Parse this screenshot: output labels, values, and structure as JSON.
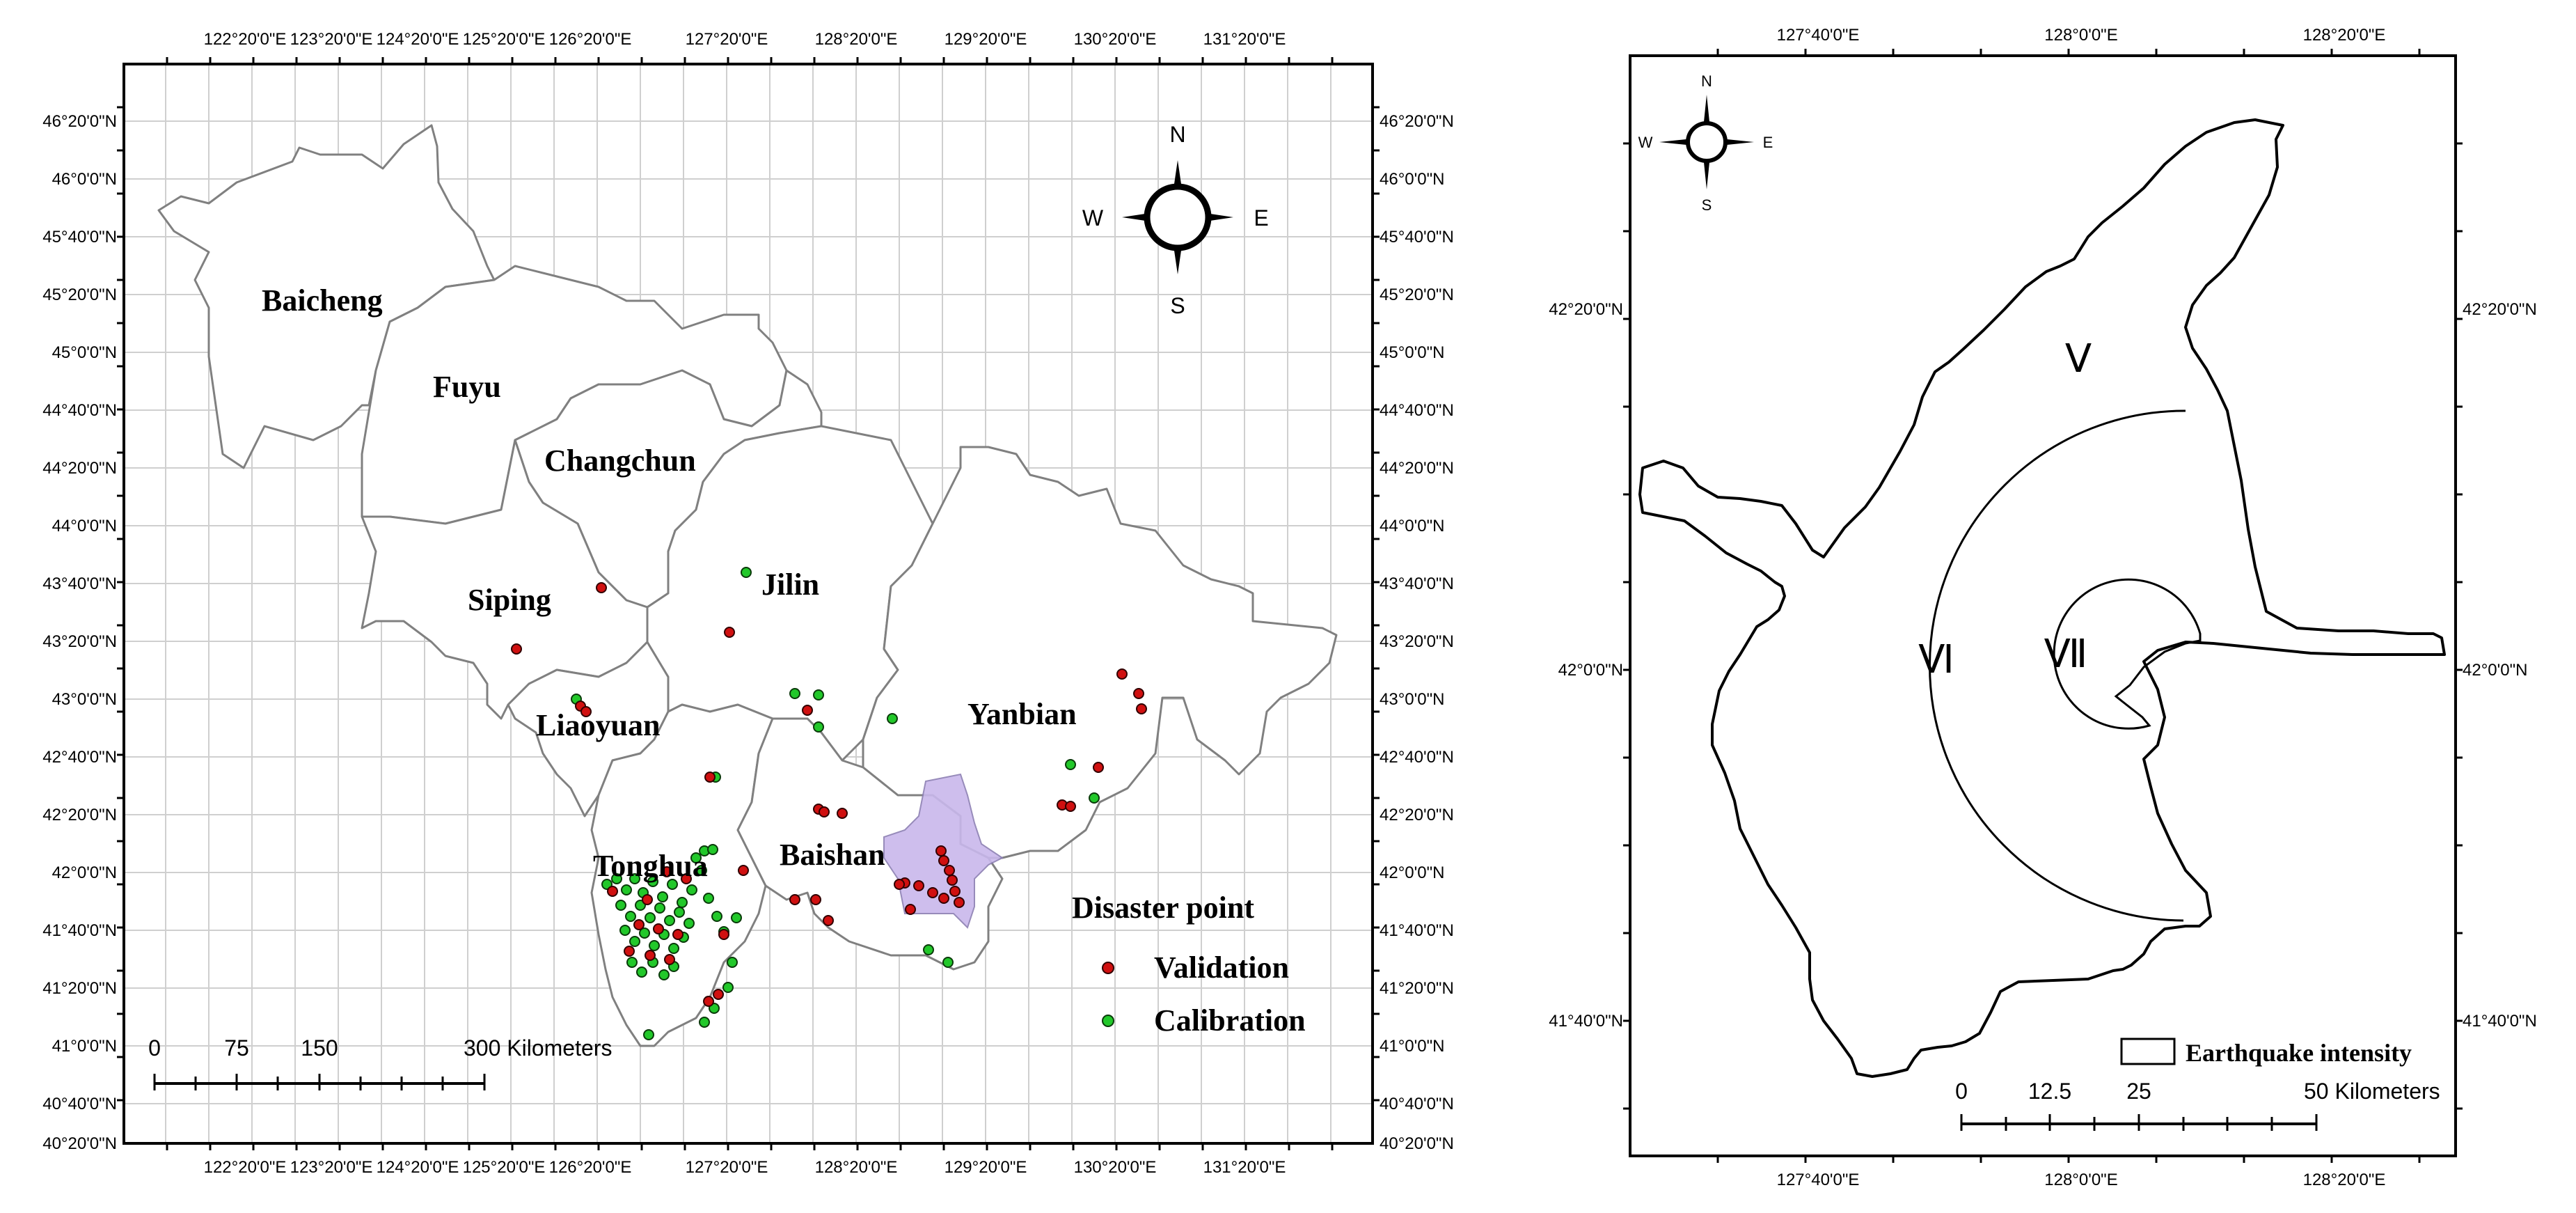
{
  "left_map": {
    "top_lon_labels": [
      "122°20'0\"E",
      "123°20'0\"E",
      "124°20'0\"E",
      "125°20'0\"E",
      "126°20'0\"E",
      "127°20'0\"E",
      "128°20'0\"E",
      "129°20'0\"E",
      "130°20'0\"E",
      "131°20'0\"E"
    ],
    "bottom_lon_labels": [
      "122°20'0\"E",
      "123°20'0\"E",
      "124°20'0\"E",
      "125°20'0\"E",
      "126°20'0\"E",
      "127°20'0\"E",
      "128°20'0\"E",
      "129°20'0\"E",
      "130°20'0\"E",
      "131°20'0\"E"
    ],
    "left_lat_labels": [
      "46°20'0\"N",
      "46°0'0\"N",
      "45°40'0\"N",
      "45°20'0\"N",
      "45°0'0\"N",
      "44°40'0\"N",
      "44°20'0\"N",
      "44°0'0\"N",
      "43°40'0\"N",
      "43°20'0\"N",
      "43°0'0\"N",
      "42°40'0\"N",
      "42°20'0\"N",
      "42°0'0\"N",
      "41°40'0\"N",
      "41°20'0\"N",
      "41°0'0\"N",
      "40°40'0\"N",
      "40°20'0\"N"
    ],
    "right_lat_labels": [
      "46°20'0\"N",
      "46°0'0\"N",
      "45°40'0\"N",
      "45°20'0\"N",
      "45°0'0\"N",
      "44°40'0\"N",
      "44°20'0\"N",
      "44°0'0\"N",
      "43°40'0\"N",
      "43°20'0\"N",
      "43°0'0\"N",
      "42°40'0\"N",
      "42°20'0\"N",
      "42°0'0\"N",
      "41°40'0\"N",
      "41°20'0\"N",
      "41°0'0\"N",
      "40°40'0\"N",
      "40°20'0\"N"
    ],
    "regions": {
      "baicheng": "Baicheng",
      "fuyu": "Fuyu",
      "changchun": "Changchun",
      "jilin": "Jilin",
      "siping": "Siping",
      "liaoyuan": "Liaoyuan",
      "yanbian": "Yanbian",
      "tonghua": "Tonghua",
      "baishan": "Baishan"
    },
    "compass": {
      "n": "N",
      "s": "S",
      "e": "E",
      "w": "W"
    },
    "legend": {
      "title": "Disaster point",
      "validation": "Validation",
      "calibration": "Calibration",
      "validation_color": "#d01010",
      "calibration_color": "#22c82a"
    },
    "scalebar": {
      "t0": "0",
      "t1": "75",
      "t2": "150",
      "t3": "300 Kilometers"
    },
    "highlight_color": "#c9b8ec"
  },
  "right_map": {
    "top_lon_labels": [
      "127°40'0\"E",
      "128°0'0\"E",
      "128°20'0\"E"
    ],
    "bottom_lon_labels": [
      "127°40'0\"E",
      "128°0'0\"E",
      "128°20'0\"E"
    ],
    "left_lat_labels": [
      "42°20'0\"N",
      "42°0'0\"N",
      "41°40'0\"N"
    ],
    "right_lat_labels": [
      "42°20'0\"N",
      "42°0'0\"N",
      "41°40'0\"N"
    ],
    "compass": {
      "n": "N",
      "s": "S",
      "e": "E",
      "w": "W"
    },
    "intensity_labels": {
      "v": "Ⅴ",
      "vi": "Ⅵ",
      "vii": "Ⅶ"
    },
    "legend": {
      "label": "Earthquake intensity"
    },
    "scalebar": {
      "t0": "0",
      "t1": "12.5",
      "t2": "25",
      "t3": "50 Kilometers"
    }
  }
}
